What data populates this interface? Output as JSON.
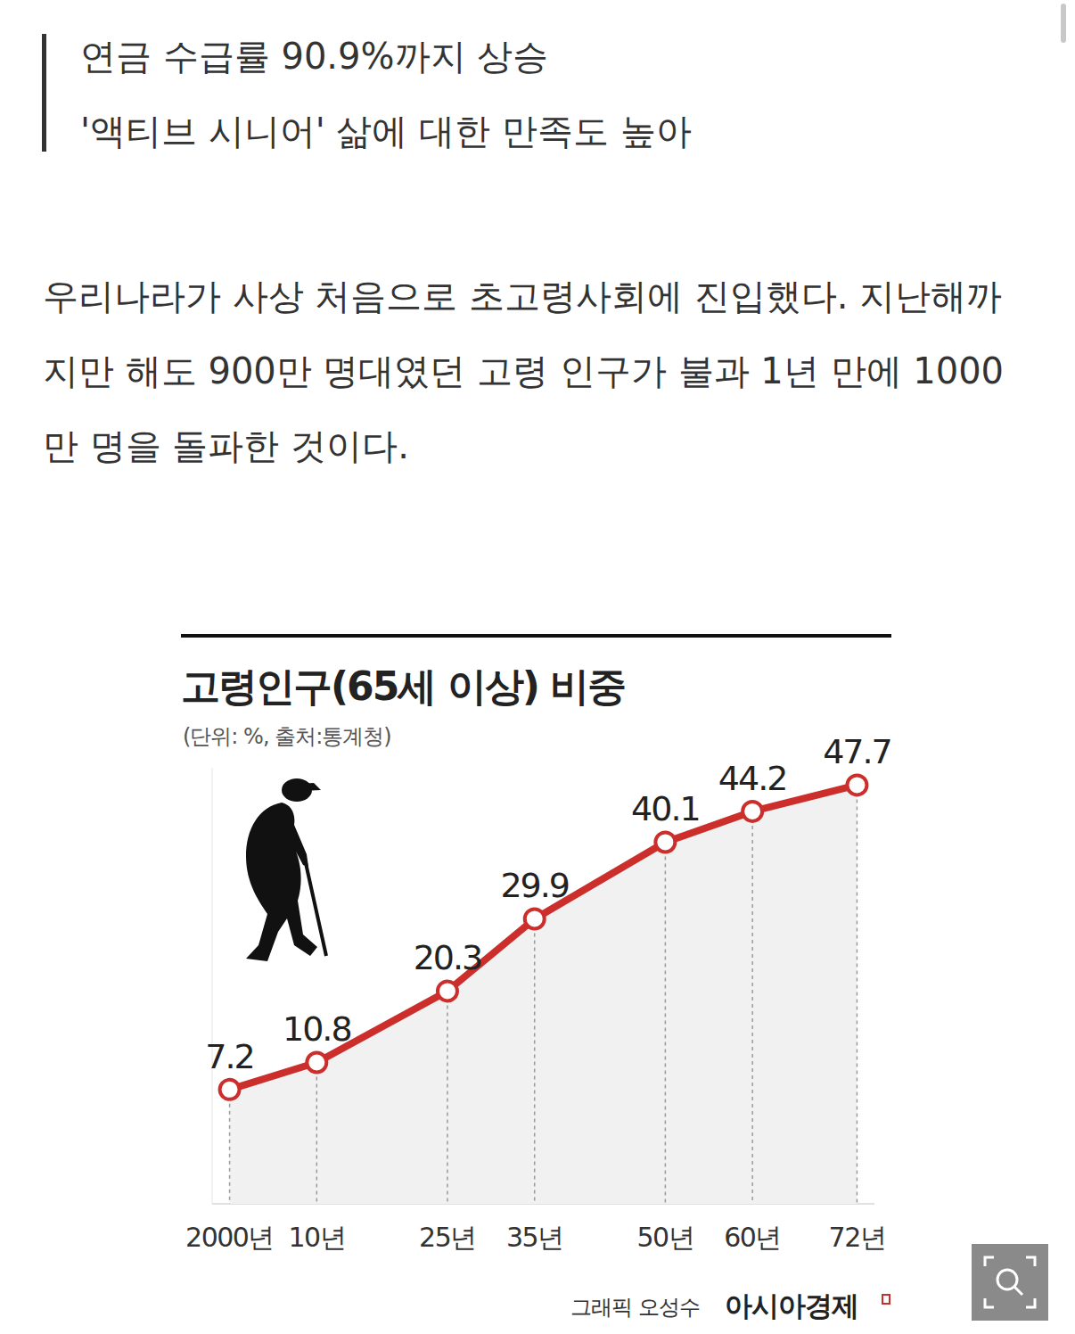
{
  "article": {
    "subheadings": [
      "연금 수급률 90.9%까지 상승",
      "'액티브 시니어' 삶에 대한 만족도 높아"
    ],
    "body": "우리나라가 사상 처음으로 초고령사회에 진입했다. 지난해까지만 해도 900만 명대였던 고령 인구가 불과 1년 만에 1000만 명을 돌파한 것이다."
  },
  "chart_data": {
    "type": "line",
    "title": "고령인구(65세 이상) 비중",
    "subtitle": "(단위: %, 출처:통계청)",
    "x": [
      2000,
      2010,
      2025,
      2035,
      2050,
      2060,
      2072
    ],
    "values": [
      7.2,
      10.8,
      20.3,
      29.9,
      40.1,
      44.2,
      47.7
    ],
    "color": "#cc2f2b",
    "marker": "circle",
    "xlim": [
      1998,
      2074
    ],
    "xticks": [
      {
        "value": 2000,
        "label": "2000년"
      },
      {
        "value": 2010,
        "label": "10년"
      },
      {
        "value": 2025,
        "label": "25년"
      },
      {
        "value": 2035,
        "label": "35년"
      },
      {
        "value": 2050,
        "label": "50년"
      },
      {
        "value": 2060,
        "label": "60년"
      },
      {
        "value": 2072,
        "label": "72년"
      }
    ],
    "ylim": [
      -8,
      50
    ],
    "yticks": [],
    "tick_labels": "x",
    "data_labels": true,
    "grid": true
  },
  "footer": {
    "credit": "그래픽 오성수",
    "publisher": "아시아경제"
  }
}
